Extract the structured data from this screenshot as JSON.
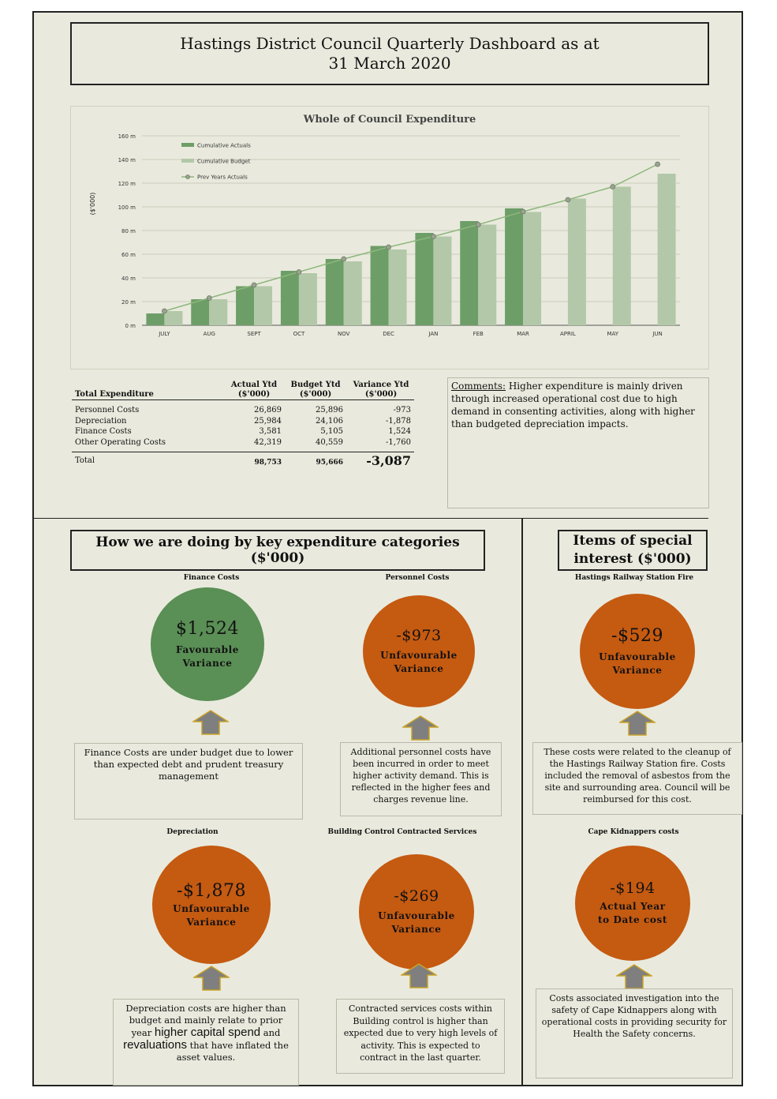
{
  "header": {
    "title_line1": "Hastings District Council Quarterly Dashboard as at",
    "title_line2": "31 March 2020"
  },
  "chart_data": {
    "type": "bar",
    "title": "Whole of Council Expenditure",
    "ylabel": "($'000)",
    "xlabel": "",
    "categories": [
      "JULY",
      "AUG",
      "SEPT",
      "OCT",
      "NOV",
      "DEC",
      "JAN",
      "FEB",
      "MAR",
      "APRIL",
      "MAY",
      "JUN"
    ],
    "ylim": [
      0,
      160
    ],
    "yticks": [
      0,
      20,
      40,
      60,
      80,
      100,
      120,
      140,
      160
    ],
    "ytick_labels": [
      "0 m",
      "20 m",
      "40 m",
      "60 m",
      "80 m",
      "100 m",
      "120 m",
      "140 m",
      "160 m"
    ],
    "legend_position": "top-left",
    "grid": true,
    "series": [
      {
        "name": "Cumulative Actuals",
        "kind": "bar",
        "color": "#6e9e68",
        "values": [
          10,
          22,
          33,
          46,
          56,
          67,
          78,
          88,
          98.753,
          null,
          null,
          null
        ]
      },
      {
        "name": "Cumulative Budget",
        "kind": "bar",
        "color": "#b3c8a8",
        "values": [
          12,
          22,
          33,
          44,
          54,
          64,
          75,
          85,
          95.666,
          107,
          117,
          128
        ]
      },
      {
        "name": "Prev Years Actuals",
        "kind": "line",
        "color": "#8db67c",
        "values": [
          12,
          23,
          34,
          45,
          56,
          66,
          75,
          85,
          96,
          106,
          117,
          136
        ]
      }
    ]
  },
  "table": {
    "title": "Total Expenditure",
    "col_headers": [
      {
        "line1": "Actual Ytd",
        "line2": "($'000)"
      },
      {
        "line1": "Budget Ytd",
        "line2": "($'000)"
      },
      {
        "line1": "Variance Ytd",
        "line2": "($'000)"
      }
    ],
    "rows": [
      {
        "label": "Personnel Costs",
        "actual": "26,869",
        "budget": "25,896",
        "variance": "-973"
      },
      {
        "label": "Depreciation",
        "actual": "25,984",
        "budget": "24,106",
        "variance": "-1,878"
      },
      {
        "label": "Finance Costs",
        "actual": "3,581",
        "budget": "5,105",
        "variance": "1,524"
      },
      {
        "label": "Other Operating Costs",
        "actual": "42,319",
        "budget": "40,559",
        "variance": "-1,760"
      }
    ],
    "total": {
      "label": "Total",
      "actual": "98,753",
      "budget": "95,666",
      "variance": "-3,087"
    }
  },
  "comments": {
    "heading": "Comments:",
    "text": " Higher expenditure is mainly driven through increased operational cost due to high demand in consenting activities, along with higher than budgeted depreciation impacts."
  },
  "categories_section": {
    "title": "How we are doing by key expenditure categories ($'000)",
    "items": [
      {
        "name": "Finance Costs",
        "amount": "$1,524",
        "status_line1": "Favourable",
        "status_line2": "Variance",
        "color": "#5a8f55",
        "note": "Finance Costs are under budget due to lower than expected debt and prudent treasury management"
      },
      {
        "name": "Personnel Costs",
        "amount": "-$973",
        "status_line1": "Unfavourable",
        "status_line2": "Variance",
        "color": "#c55a11",
        "note": "Additional personnel costs have been incurred in order to meet higher activity demand. This is reflected in the higher fees and charges revenue line."
      },
      {
        "name": "Depreciation",
        "amount": "-$1,878",
        "status_line1": "Unfavourable",
        "status_line2": "Variance",
        "color": "#c55a11",
        "note_part1": "Depreciation costs are higher than budget and mainly relate to prior year ",
        "note_emph1": "higher capital spend",
        "note_part2": " and ",
        "note_emph2": "revaluations",
        "note_part3": " that have inflated the asset values."
      },
      {
        "name": "Building Control Contracted Services",
        "amount": "-$269",
        "status_line1": "Unfavourable",
        "status_line2": "Variance",
        "color": "#c55a11",
        "note": "Contracted services costs within Building control is higher than expected due to very high levels of activity. This is expected to contract in the last quarter."
      }
    ]
  },
  "special_section": {
    "title_line1": "Items of special",
    "title_line2": "interest ($'000)",
    "items": [
      {
        "name": "Hastings Railway Station Fire",
        "amount": "-$529",
        "status_line1": "Unfavourable",
        "status_line2": "Variance",
        "color": "#c55a11",
        "note": "These costs were related to the cleanup of the Hastings Railway Station fire.  Costs included the removal of asbestos from the site and surrounding area.  Council will be reimbursed for this cost."
      },
      {
        "name": "Cape Kidnappers costs",
        "amount": "-$194",
        "status_line1": "Actual Year",
        "status_line2": "to Date cost",
        "color": "#c55a11",
        "note": "Costs associated investigation into the safety of Cape Kidnappers along with operational costs in providing security for Health the Safety concerns."
      }
    ]
  },
  "colors": {
    "background": "#e9eadd",
    "favourable": "#5a8f55",
    "unfavourable": "#c55a11",
    "arrow": "#7f7f7f",
    "arrow_outline": "#c9a227"
  }
}
